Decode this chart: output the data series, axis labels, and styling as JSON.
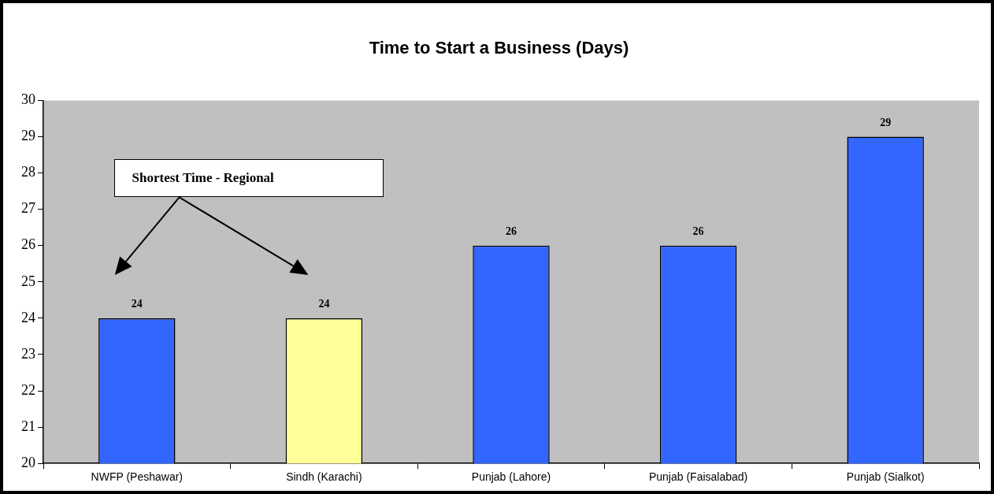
{
  "chart_data": {
    "type": "bar",
    "title": "Time to Start a Business (Days)",
    "categories": [
      "NWFP (Peshawar)",
      "Sindh (Karachi)",
      "Punjab (Lahore)",
      "Punjab (Faisalabad)",
      "Punjab (Sialkot)"
    ],
    "values": [
      24,
      24,
      26,
      26,
      29
    ],
    "colors": [
      "#3366ff",
      "#ffff99",
      "#3366ff",
      "#3366ff",
      "#3366ff"
    ],
    "ylim": [
      20,
      30
    ],
    "yticks": [
      20,
      21,
      22,
      23,
      24,
      25,
      26,
      27,
      28,
      29,
      30
    ],
    "grid": false,
    "legend": false,
    "data_labels": true,
    "annotations": [
      "Shortest Time - Regional"
    ]
  }
}
